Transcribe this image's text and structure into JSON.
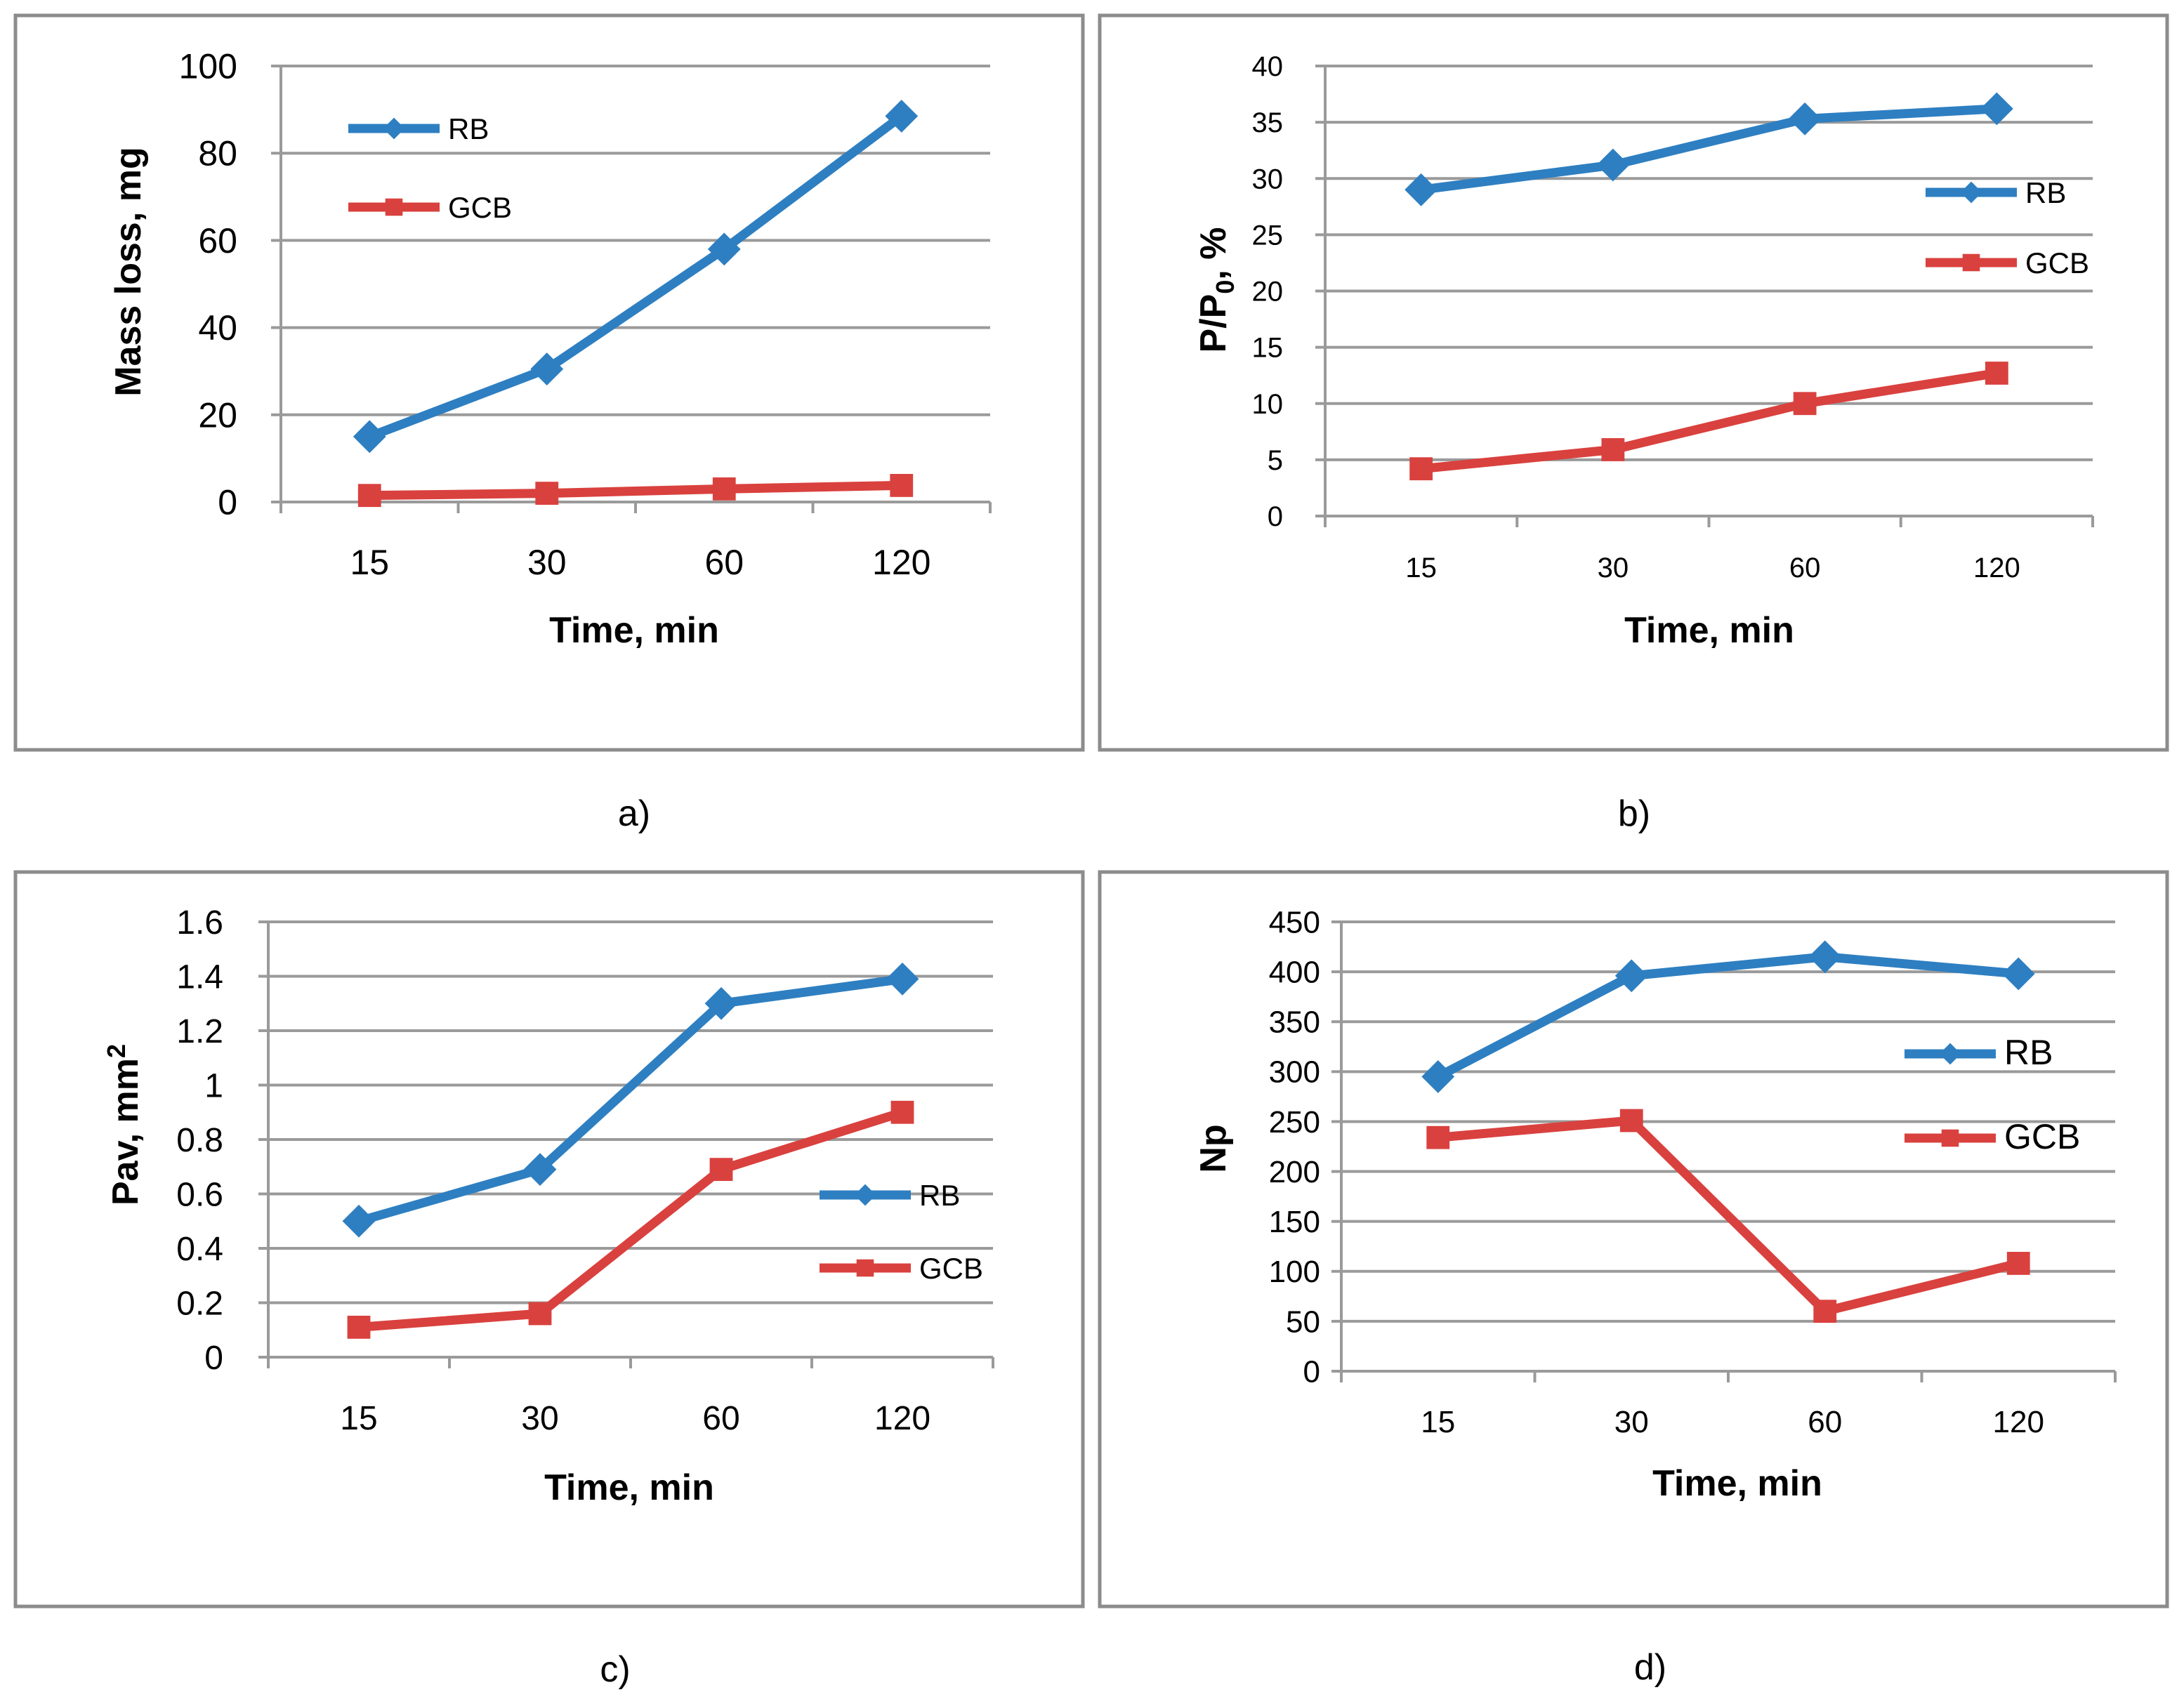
{
  "colors": {
    "rb": "#2E7FC1",
    "gcb": "#D9413E",
    "grid": "#9A9A9A",
    "frame": "#8C8C8C"
  },
  "chart_data": [
    {
      "type": "line",
      "panel_label": "a)",
      "categories": [
        "15",
        "30",
        "60",
        "120"
      ],
      "xlabel": "Time, min",
      "ylabel": "Mass loss, mg",
      "ylim": [
        0,
        100
      ],
      "yticks": [
        "0",
        "20",
        "40",
        "60",
        "80",
        "100"
      ],
      "legend_position": "top-left",
      "series": [
        {
          "name": "RB",
          "values": [
            15,
            30.5,
            58,
            88.5
          ]
        },
        {
          "name": "GCB",
          "values": [
            1.5,
            2,
            3,
            3.8
          ]
        }
      ]
    },
    {
      "type": "line",
      "panel_label": "b)",
      "categories": [
        "15",
        "30",
        "60",
        "120"
      ],
      "xlabel": "Time, min",
      "ylabel": "P/P",
      "ylabel_sub": "0",
      "ylabel_suffix": ", %",
      "ylim": [
        0,
        40
      ],
      "yticks": [
        "0",
        "5",
        "10",
        "15",
        "20",
        "25",
        "30",
        "35",
        "40"
      ],
      "legend_position": "right",
      "series": [
        {
          "name": "RB",
          "values": [
            29,
            31.2,
            35.3,
            36.2
          ]
        },
        {
          "name": "GCB",
          "values": [
            4.2,
            5.9,
            10,
            12.7
          ]
        }
      ]
    },
    {
      "type": "line",
      "panel_label": "c)",
      "categories": [
        "15",
        "30",
        "60",
        "120"
      ],
      "xlabel": "Time, min",
      "ylabel": "Pav, mm",
      "ylabel_sup": "2",
      "ylim": [
        0,
        1.6
      ],
      "yticks": [
        "0",
        "0.2",
        "0.4",
        "0.6",
        "0.8",
        "1",
        "1.2",
        "1.4",
        "1.6"
      ],
      "legend_position": "right",
      "series": [
        {
          "name": "RB",
          "values": [
            0.5,
            0.69,
            1.3,
            1.39
          ]
        },
        {
          "name": "GCB",
          "values": [
            0.11,
            0.16,
            0.69,
            0.9
          ]
        }
      ]
    },
    {
      "type": "line",
      "panel_label": "d)",
      "categories": [
        "15",
        "30",
        "60",
        "120"
      ],
      "xlabel": "Time, min",
      "ylabel": "Np",
      "ylim": [
        0,
        450
      ],
      "yticks": [
        "0",
        "50",
        "100",
        "150",
        "200",
        "250",
        "300",
        "350",
        "400",
        "450"
      ],
      "legend_position": "right",
      "series": [
        {
          "name": "RB",
          "values": [
            295,
            396,
            415,
            398
          ]
        },
        {
          "name": "GCB",
          "values": [
            234,
            251,
            60,
            108
          ]
        }
      ]
    }
  ]
}
